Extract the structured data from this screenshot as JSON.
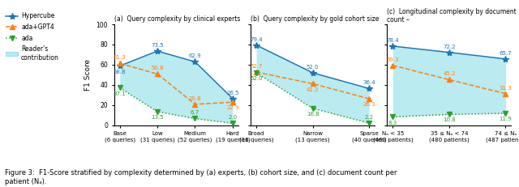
{
  "chart_data": [
    {
      "type": "line",
      "title": "(a)  Query complexity by clinical experts",
      "categories": [
        "Base\n(6 queries)",
        "Low\n(31 queries)",
        "Medium\n(52 queries)",
        "Hard\n(19 queries)"
      ],
      "ylabel": "F1 Score",
      "ylim": [
        0,
        100
      ],
      "yticks": [
        0,
        20,
        40,
        60,
        80,
        100
      ],
      "data_labels": true,
      "legend": "upper left",
      "series": [
        {
          "name": "Hypercube",
          "type": "line",
          "marker": "star",
          "line_style": "solid",
          "values": [
            58.8,
            73.5,
            62.9,
            26.5
          ]
        },
        {
          "name": "ada+GPT4",
          "type": "line",
          "marker": "triangle_up",
          "line_style": "dashed",
          "values": [
            61.3,
            50.8,
            20.8,
            22.9
          ]
        },
        {
          "name": "ada",
          "type": "line",
          "marker": "triangle_down",
          "line_style": "dotted",
          "values": [
            37.1,
            13.5,
            6.7,
            2.0
          ]
        },
        {
          "name": "Reader's\ncontribution",
          "type": "area",
          "between": [
            "ada",
            "Hypercube"
          ]
        }
      ]
    },
    {
      "type": "line",
      "title": "(b)  Query complexity by gold cohort size",
      "categories": [
        "Broad\n(18 queries)",
        "Narrow\n(13 queries)",
        "Sparse\n(40 queries)"
      ],
      "ylim": [
        0,
        100
      ],
      "yticks": [
        0,
        20,
        40,
        60,
        80,
        100
      ],
      "tick_labels": "x",
      "data_labels": true,
      "series": [
        {
          "name": "Hypercube",
          "type": "line",
          "marker": "star",
          "line_style": "solid",
          "values": [
            79.4,
            52.0,
            36.4
          ]
        },
        {
          "name": "ada+GPT4",
          "type": "line",
          "marker": "triangle_up",
          "line_style": "dashed",
          "values": [
            52.7,
            41.2,
            26.3
          ]
        },
        {
          "name": "ada",
          "type": "line",
          "marker": "triangle_down",
          "line_style": "dotted",
          "values": [
            52.0,
            16.8,
            2.2
          ]
        },
        {
          "name": "Reader's\ncontribution",
          "type": "area",
          "between": [
            "ada",
            "Hypercube"
          ]
        }
      ]
    },
    {
      "type": "line",
      "title": "(c)  Longitudinal complexity by document count –",
      "categories": [
        "Nₐ < 35\n(469 patients)",
        "35 ≤ Nₐ < 74\n(480 patients)",
        "74 ≤ Nₐ\n(487 patients)"
      ],
      "ylim": [
        0,
        100
      ],
      "yticks": [
        0,
        20,
        40,
        60,
        80,
        100
      ],
      "tick_labels": "x",
      "data_labels": true,
      "series": [
        {
          "name": "Hypercube",
          "type": "line",
          "marker": "star",
          "line_style": "solid",
          "values": [
            78.4,
            72.2,
            65.7
          ]
        },
        {
          "name": "ada+GPT4",
          "type": "line",
          "marker": "triangle_up",
          "line_style": "dashed",
          "values": [
            59.3,
            45.2,
            31.3
          ]
        },
        {
          "name": "ada",
          "type": "line",
          "marker": "triangle_down",
          "line_style": "dotted",
          "values": [
            8.3,
            10.8,
            11.9
          ]
        },
        {
          "name": "Reader's\ncontribution",
          "type": "area",
          "between": [
            "ada",
            "Hypercube"
          ]
        }
      ]
    }
  ],
  "caption": "Figure 3:  F1-Score stratified by complexity determined by (a) experts, (b) cohort size, and (c) document count per\npatient (Nₐ)."
}
